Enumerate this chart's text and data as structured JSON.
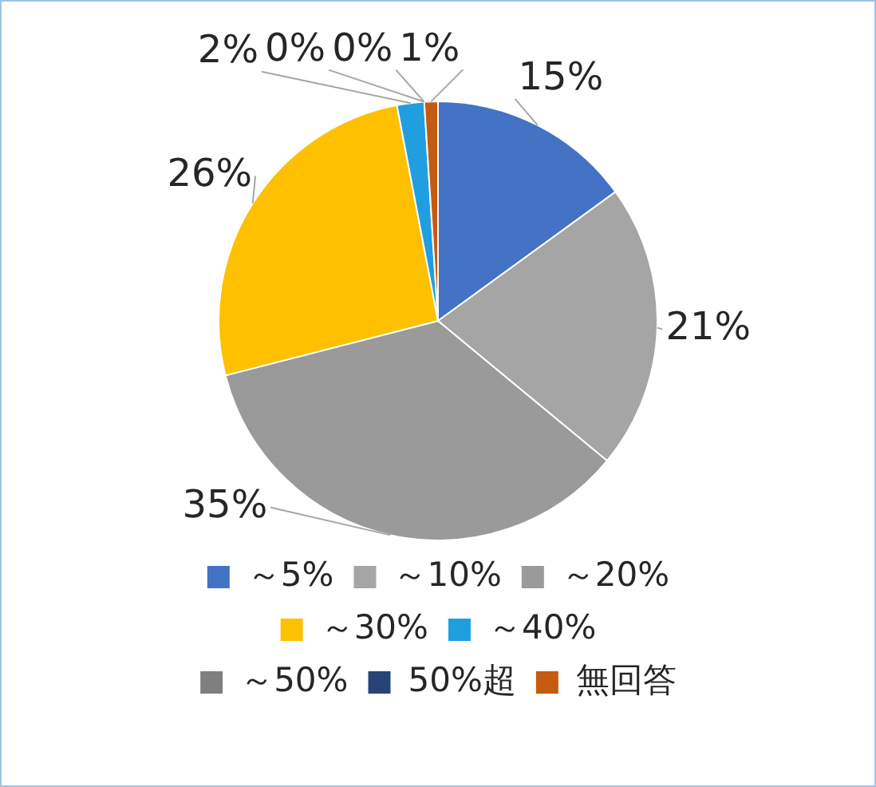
{
  "chart_data": {
    "type": "pie",
    "categories": [
      "～5%",
      "～10%",
      "～20%",
      "～30%",
      "～40%",
      "～50%",
      "50%超",
      "無回答"
    ],
    "values": [
      15,
      21,
      35,
      26,
      2,
      0,
      0,
      1
    ],
    "colors": [
      "#4472c4",
      "#a5a5a5",
      "#9a9a9a",
      "#ffc000",
      "#1f9fe0",
      "#7f7f7f",
      "#264478",
      "#c55a11"
    ],
    "value_labels": [
      "15%",
      "21%",
      "35%",
      "26%",
      "2%",
      "0%",
      "0%",
      "1%"
    ],
    "legend": "bottom"
  }
}
